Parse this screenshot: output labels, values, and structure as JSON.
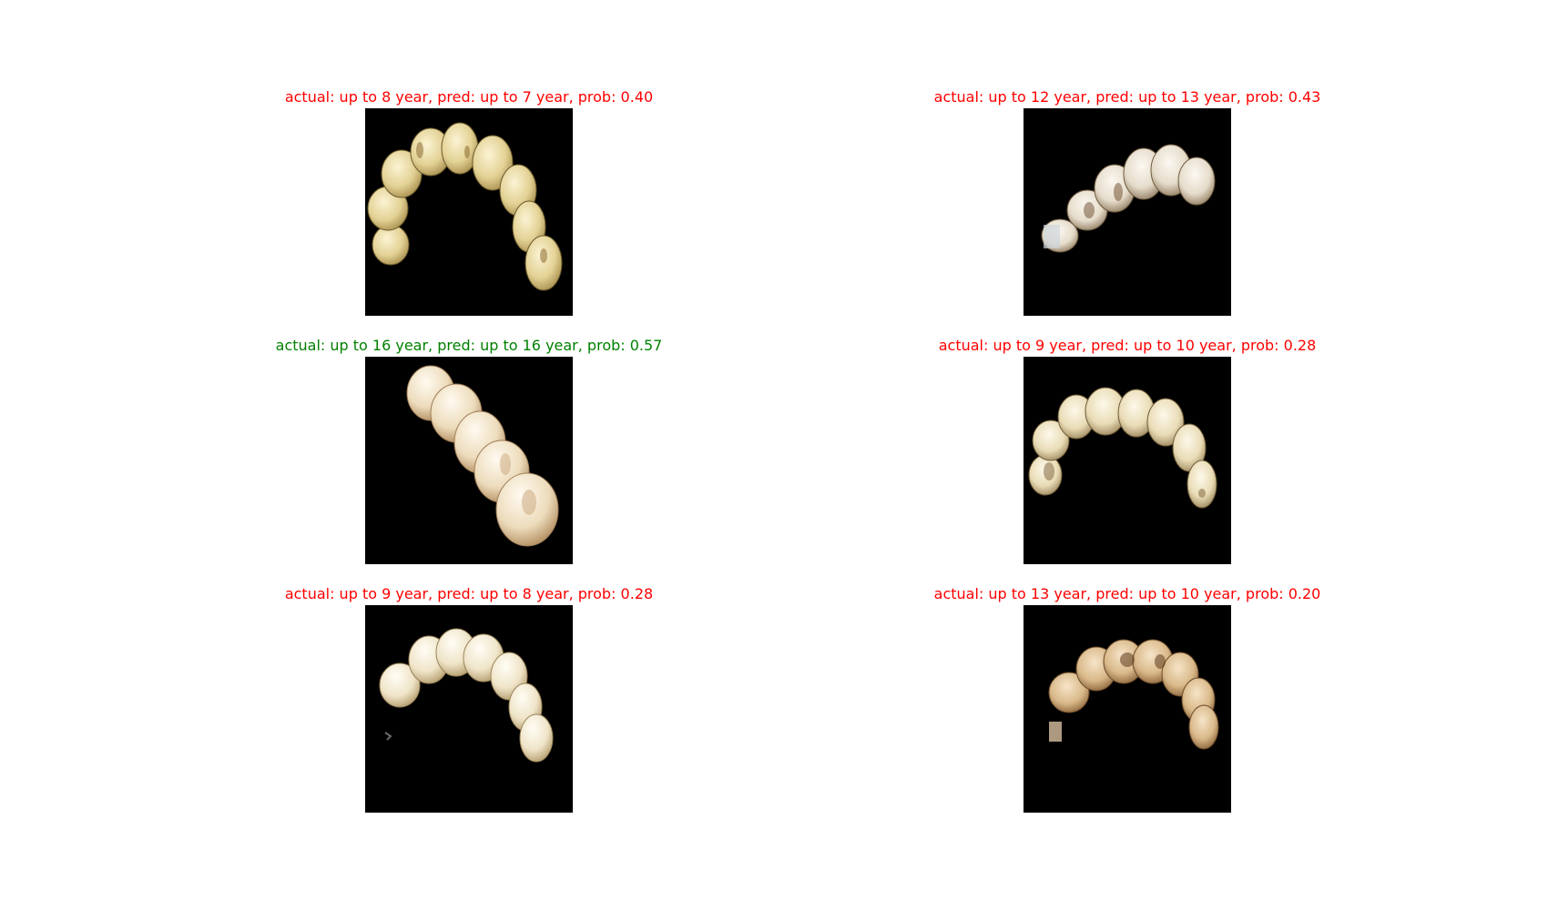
{
  "colors": {
    "incorrect": "#ff0000",
    "correct": "#008000",
    "image_background": "#000000",
    "page_background": "#ffffff"
  },
  "panels": [
    {
      "title": "actual: up to 8 year, pred: up to 7 year, prob: 0.40",
      "correct": false,
      "image": "dental-arch-photo"
    },
    {
      "title": "actual: up to 12 year, pred: up to 13 year, prob: 0.43",
      "correct": false,
      "image": "dental-arch-photo"
    },
    {
      "title": "actual: up to 16 year, pred: up to 16 year, prob: 0.57",
      "correct": true,
      "image": "dental-arch-photo"
    },
    {
      "title": "actual: up to 9 year, pred: up to 10 year, prob: 0.28",
      "correct": false,
      "image": "dental-arch-photo"
    },
    {
      "title": "actual: up to 9 year, pred: up to 8 year, prob: 0.28",
      "correct": false,
      "image": "dental-arch-photo"
    },
    {
      "title": "actual: up to 13 year, pred: up to 10 year, prob: 0.20",
      "correct": false,
      "image": "dental-arch-photo"
    }
  ]
}
